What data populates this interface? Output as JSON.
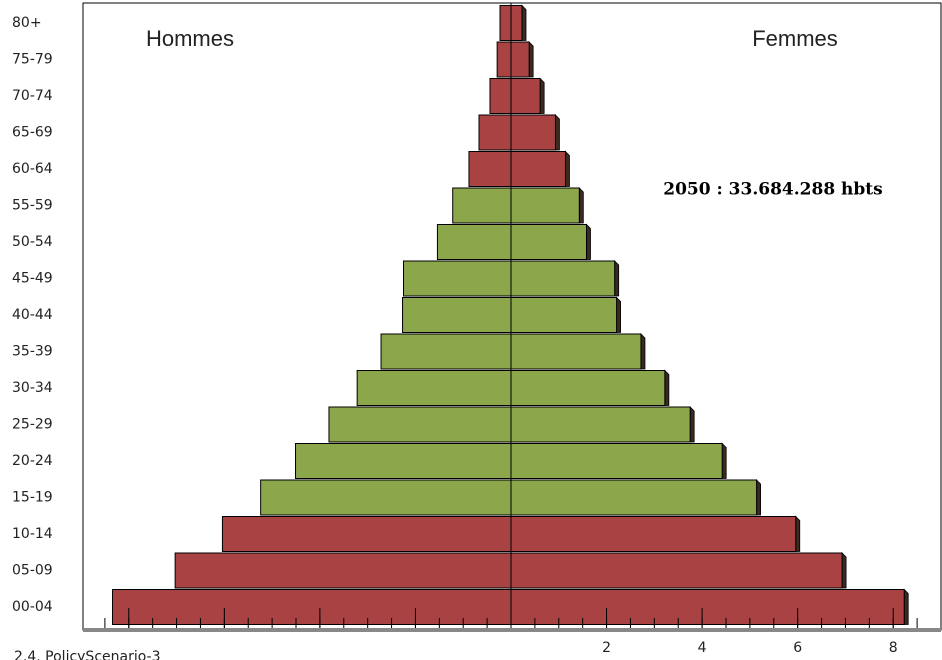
{
  "chart_data": {
    "type": "pyramid",
    "categories": [
      "00-04",
      "05-09",
      "10-14",
      "15-19",
      "20-24",
      "25-29",
      "30-34",
      "35-39",
      "40-44",
      "45-49",
      "50-54",
      "55-59",
      "60-64",
      "65-69",
      "70-74",
      "75-79",
      "80+"
    ],
    "series": [
      {
        "name": "Hommes",
        "side": "left",
        "values": [
          8.34,
          7.03,
          6.04,
          5.24,
          4.51,
          3.81,
          3.22,
          2.72,
          2.27,
          2.25,
          1.54,
          1.22,
          0.88,
          0.67,
          0.44,
          0.29,
          0.23
        ],
        "colors": [
          "#a94343",
          "#a94343",
          "#a94343",
          "#8ca64b",
          "#8ca64b",
          "#8ca64b",
          "#8ca64b",
          "#8ca64b",
          "#8ca64b",
          "#8ca64b",
          "#8ca64b",
          "#8ca64b",
          "#a94343",
          "#a94343",
          "#a94343",
          "#a94343",
          "#a94343"
        ]
      },
      {
        "name": "Femmes",
        "side": "right",
        "values": [
          8.23,
          6.93,
          5.96,
          5.14,
          4.42,
          3.75,
          3.22,
          2.72,
          2.21,
          2.17,
          1.58,
          1.43,
          1.14,
          0.93,
          0.61,
          0.38,
          0.23
        ],
        "colors": [
          "#a94343",
          "#a94343",
          "#a94343",
          "#8ca64b",
          "#8ca64b",
          "#8ca64b",
          "#8ca64b",
          "#8ca64b",
          "#8ca64b",
          "#8ca64b",
          "#8ca64b",
          "#8ca64b",
          "#a94343",
          "#a94343",
          "#a94343",
          "#a94343",
          "#a94343"
        ]
      }
    ],
    "annotation": "2050 : 33.684.288 hbts",
    "footer": "2.4. PolicyScenario-3",
    "xlim": [
      0,
      9
    ],
    "xticks": [
      2,
      4,
      6,
      8
    ]
  }
}
